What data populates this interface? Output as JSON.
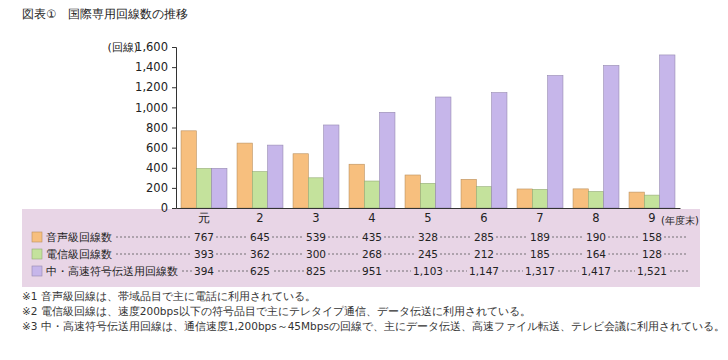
{
  "chart_data": {
    "type": "bar",
    "title": "図表①　国際専用回線数の推移",
    "ylabel": "(回線)",
    "xlabel": "(年度末)",
    "categories": [
      "元",
      "2",
      "3",
      "4",
      "5",
      "6",
      "7",
      "8",
      "9"
    ],
    "series": [
      {
        "name": "音声級回線数",
        "color": "#f7bf7e",
        "values": [
          767,
          645,
          539,
          435,
          328,
          285,
          189,
          190,
          158
        ]
      },
      {
        "name": "電信級回線数",
        "color": "#c4e29c",
        "values": [
          393,
          362,
          300,
          268,
          245,
          212,
          185,
          164,
          128
        ]
      },
      {
        "name": "中・高速符号伝送用回線数",
        "color": "#c6b6ea",
        "values": [
          394,
          625,
          825,
          951,
          1103,
          1147,
          1317,
          1417,
          1521
        ],
        "value_labels": [
          "394",
          "625",
          "825",
          "951",
          "1,103",
          "1,147",
          "1,317",
          "1,417",
          "1,521"
        ]
      }
    ],
    "ylim": [
      0,
      1600
    ],
    "yticks": [
      0,
      200,
      400,
      600,
      800,
      {
        "value": 1000,
        "label": "1,000"
      },
      {
        "value": 1200,
        "label": "1,200"
      },
      {
        "value": 1400,
        "label": "1,400"
      },
      {
        "value": 1600,
        "label": "1,600"
      }
    ],
    "grid": false,
    "data_labels": true,
    "notes": [
      "※1 音声級回線は、帯域品目で主に電話に利用されている。",
      "※2 電信級回線は、速度200bps以下の符号品目で主にテレタイプ通信、データ伝送に利用されている。",
      "※3 中・高速符号伝送用回線は、通信速度1,200bps～45Mbpsの回線で、主にデータ伝送、高速ファイル転送、テレビ会議に利用されている。"
    ]
  }
}
